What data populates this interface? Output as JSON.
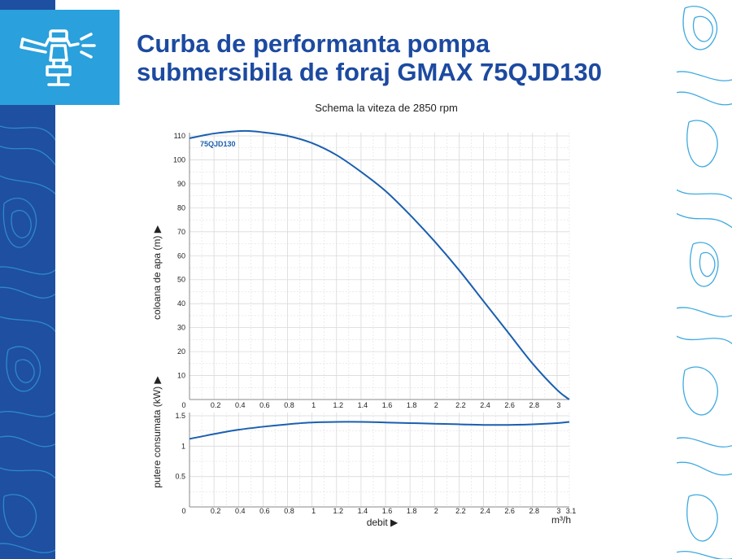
{
  "title_line1": "Curba de performanta pompa",
  "title_line2": "submersibila de foraj GMAX 75QJD130",
  "icons": {
    "header": "sprinkler-icon",
    "left_decor": "topography-pattern",
    "right_decor": "topography-pattern"
  },
  "colors": {
    "title": "#1c4aa0",
    "curve": "#1a5fb0",
    "icon_bg": "#2aa0dc",
    "left_strip": "#1f4fa0",
    "grid": "#d9d9d9"
  },
  "chart_data": [
    {
      "type": "line",
      "title": "Schema la viteza de 2850 rpm",
      "ylabel": "coloana de apa (m) ▶",
      "xlim": [
        0,
        3.1
      ],
      "ylim": [
        0,
        110
      ],
      "x_ticks": [
        "0",
        "0.2",
        "0.4",
        "0.6",
        "0.8",
        "1",
        "1.2",
        "1.4",
        "1.6",
        "1.8",
        "2",
        "2.2",
        "2.4",
        "2.6",
        "2.8",
        "3"
      ],
      "y_ticks": [
        "10",
        "20",
        "30",
        "40",
        "50",
        "60",
        "70",
        "80",
        "90",
        "100",
        "110"
      ],
      "grid": true,
      "series": [
        {
          "name": "75QJD130",
          "x": [
            0,
            0.2,
            0.4,
            0.5,
            0.6,
            0.8,
            1.0,
            1.2,
            1.4,
            1.6,
            1.8,
            2.0,
            2.2,
            2.4,
            2.6,
            2.8,
            3.0,
            3.1
          ],
          "y": [
            109,
            111,
            112,
            112,
            111.5,
            110,
            107,
            102,
            95,
            87,
            77,
            66,
            54,
            41,
            28,
            15,
            4,
            0
          ]
        }
      ]
    },
    {
      "type": "line",
      "ylabel": "putere consumata (kW) ▶",
      "xlabel": "debit ▶",
      "x_unit": "m³/h",
      "xlim": [
        0,
        3.1
      ],
      "ylim": [
        0,
        1.5
      ],
      "x_ticks": [
        "0",
        "0.2",
        "0.4",
        "0.6",
        "0.8",
        "1",
        "1.2",
        "1.4",
        "1.6",
        "1.8",
        "2",
        "2.2",
        "2.4",
        "2.6",
        "2.8",
        "3",
        "3.1"
      ],
      "y_ticks": [
        "0.5",
        "1",
        "1.5"
      ],
      "grid": true,
      "series": [
        {
          "x": [
            0,
            0.2,
            0.4,
            0.6,
            0.8,
            1.0,
            1.2,
            1.4,
            1.6,
            1.8,
            2.0,
            2.2,
            2.4,
            2.6,
            2.8,
            3.0,
            3.1
          ],
          "y": [
            1.12,
            1.2,
            1.27,
            1.32,
            1.36,
            1.39,
            1.4,
            1.4,
            1.39,
            1.38,
            1.37,
            1.36,
            1.35,
            1.35,
            1.36,
            1.38,
            1.4
          ]
        }
      ]
    }
  ]
}
